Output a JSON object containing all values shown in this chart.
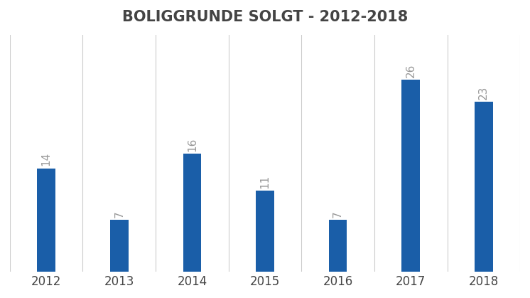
{
  "title": "BOLIGGRUNDE SOLGT - 2012-2018",
  "categories": [
    "2012",
    "2013",
    "2014",
    "2015",
    "2016",
    "2017",
    "2018"
  ],
  "values": [
    14,
    7,
    16,
    11,
    7,
    26,
    23
  ],
  "bar_color": "#1a5ea8",
  "label_color": "#999999",
  "title_color": "#444444",
  "background_color": "#ffffff",
  "ylim": [
    0,
    32
  ],
  "title_fontsize": 15,
  "label_fontsize": 11,
  "tick_fontsize": 12,
  "bar_width": 0.25,
  "grid_color": "#cccccc"
}
